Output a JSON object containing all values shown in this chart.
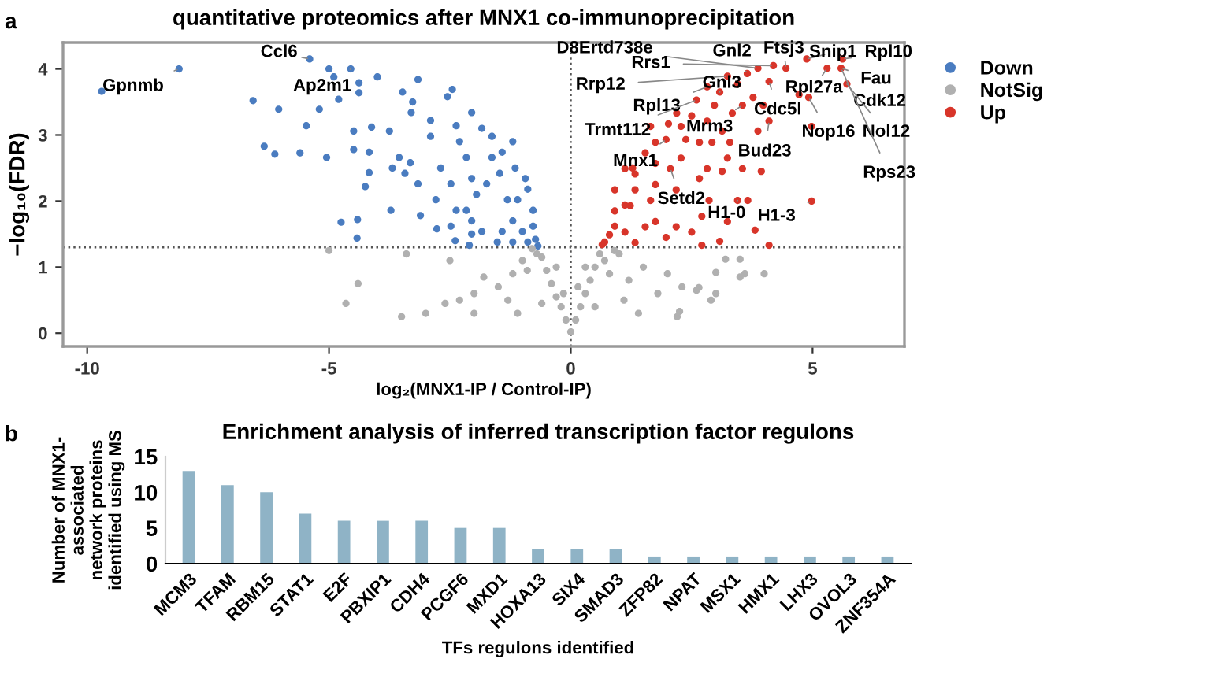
{
  "chart_data": [
    {
      "type": "scatter",
      "title": "quantitative proteomics after MNX1 co-immunoprecipitation",
      "xlabel": "log₂(MNX1-IP / Control-IP)",
      "ylabel": "−log₁₀(FDR)",
      "xlim": [
        -10.5,
        6.9
      ],
      "ylim": [
        -0.2,
        4.4
      ],
      "xticks": [
        -10,
        -5,
        0,
        5
      ],
      "yticks": [
        0,
        1,
        2,
        3,
        4
      ],
      "grid": false,
      "legend": "top right",
      "marker": "circle",
      "ref_lines": [
        {
          "axis": "y",
          "value": 1.3,
          "color": "#555555",
          "line_style": "dotted"
        },
        {
          "axis": "x",
          "value": 0,
          "color": "#555555",
          "line_style": "dotted"
        }
      ],
      "series": [
        {
          "name": "Down",
          "color": "#4a7cc0",
          "x": [
            -9.7,
            -8.1,
            -5.4,
            -5.0,
            -4.55,
            -4.9,
            -4.38,
            -4.0,
            -3.16,
            -6.57,
            -6.04,
            -5.2,
            -4.8,
            -4.38,
            -3.48,
            -2.45,
            -2.55,
            -3.27,
            -6.34,
            -6.12,
            -5.6,
            -5.05,
            -5.47,
            -4.49,
            -4.12,
            -4.49,
            -4.17,
            -3.55,
            -3.75,
            -3.3,
            -2.9,
            -2.9,
            -2.37,
            -2.3,
            -2.05,
            -1.84,
            -1.63,
            -1.42,
            -1.2,
            -1.15,
            -0.94,
            -0.89,
            -0.78,
            -0.78,
            -0.73,
            -1.0,
            -1.31,
            -1.2,
            -1.42,
            -1.2,
            -1.52,
            -1.84,
            -2.05,
            -2.16,
            -1.95,
            -2.37,
            -2.48,
            -2.05,
            -2.39,
            -2.77,
            -2.79,
            -3.11,
            -3.16,
            -3.43,
            -3.69,
            -3.32,
            -2.69,
            -2.48,
            -2.05,
            -1.74,
            -1.47,
            -4.25,
            -3.72,
            -4.75,
            -4.41,
            -4.42,
            -4.17,
            -2.16,
            -1.63,
            -1.1,
            -0.89,
            -0.68,
            -2.1
          ],
          "values": [
            3.66,
            4.0,
            4.15,
            4.0,
            4.0,
            3.88,
            3.79,
            3.88,
            3.84,
            3.52,
            3.39,
            3.39,
            3.54,
            3.64,
            3.65,
            3.69,
            3.58,
            3.5,
            2.83,
            2.71,
            2.73,
            2.66,
            3.14,
            3.06,
            3.12,
            2.78,
            2.74,
            2.66,
            3.06,
            3.34,
            3.22,
            2.98,
            3.14,
            2.9,
            3.34,
            3.1,
            2.98,
            2.74,
            2.9,
            2.5,
            2.34,
            2.18,
            1.86,
            1.62,
            1.42,
            1.54,
            2.02,
            1.7,
            1.54,
            1.38,
            1.38,
            1.54,
            1.7,
            1.86,
            2.1,
            1.86,
            1.62,
            1.5,
            1.4,
            1.58,
            2.02,
            1.78,
            2.26,
            2.42,
            2.5,
            2.58,
            2.5,
            2.26,
            2.34,
            2.26,
            2.42,
            2.22,
            1.86,
            1.68,
            1.72,
            1.44,
            2.43,
            2.66,
            2.66,
            2.02,
            1.38,
            1.32,
            1.33
          ]
        },
        {
          "name": "NotSig",
          "color": "#b0b0b0",
          "x": [
            0,
            0.1,
            -0.1,
            0.2,
            -0.2,
            0.3,
            -0.3,
            0.4,
            -0.4,
            0.5,
            -0.5,
            0.6,
            -0.6,
            0.7,
            -0.7,
            0.8,
            -0.9,
            1.0,
            -1.0,
            1.2,
            -1.2,
            1.5,
            -1.5,
            1.8,
            -1.8,
            2.0,
            -2.0,
            2.3,
            -2.3,
            2.6,
            -2.6,
            3.0,
            -3.0,
            3.5,
            3.5,
            4.0,
            -3.5,
            -4.4,
            -4.65,
            -5.0,
            -3.4,
            -2.5,
            2.9,
            0.3,
            -0.3,
            0.15,
            -0.15,
            1.4,
            -1.3,
            0.5,
            -0.6,
            2.2,
            -2.0,
            0.9,
            -0.8,
            1.1,
            -1.1,
            2.25,
            3.2,
            3.6,
            3.0,
            2.65
          ],
          "values": [
            0.02,
            0.2,
            0.2,
            0.4,
            0.4,
            0.6,
            0.55,
            0.8,
            0.75,
            1.0,
            0.95,
            1.2,
            1.15,
            1.1,
            1.2,
            0.9,
            0.95,
            1.2,
            1.1,
            0.8,
            0.9,
            1.0,
            0.7,
            0.6,
            0.85,
            0.9,
            0.6,
            0.7,
            0.5,
            0.65,
            0.45,
            0.6,
            0.3,
            0.85,
            1.12,
            0.9,
            0.25,
            0.75,
            0.45,
            1.25,
            1.2,
            1.1,
            0.5,
            1.0,
            1.0,
            0.7,
            0.6,
            0.3,
            0.5,
            0.4,
            0.45,
            0.25,
            0.3,
            1.25,
            1.28,
            0.5,
            0.3,
            0.33,
            1.12,
            0.9,
            0.92,
            0.69
          ]
        },
        {
          "name": "Up",
          "color": "#d8352a",
          "x": [
            4.88,
            5.62,
            5.3,
            5.59,
            5.71,
            4.92,
            4.98,
            4.45,
            4.19,
            4.1,
            3.87,
            3.65,
            3.45,
            3.24,
            3.08,
            3.77,
            3.98,
            4.72,
            4.1,
            3.87,
            3.55,
            3.34,
            2.82,
            2.6,
            2.97,
            2.82,
            2.5,
            2.28,
            2.02,
            2.38,
            1.97,
            1.75,
            3.13,
            3.29,
            2.92,
            2.66,
            3.24,
            3.94,
            3.55,
            3.13,
            2.82,
            2.66,
            2.28,
            2.06,
            1.75,
            1.54,
            1.33,
            1.12,
            0.91,
            1.33,
            1.75,
            2.18,
            1.65,
            1.23,
            0.91,
            2.86,
            3.45,
            3.66,
            4.98,
            3.81,
            3.24,
            2.71,
            2.5,
            1.97,
            1.54,
            1.12,
            0.8,
            1.33,
            2.71,
            3.08,
            4.1,
            2.18,
            1.75,
            0.7,
            1.12,
            1.28,
            0.91,
            0.65,
            1.65,
            2.19
          ],
          "values": [
            4.15,
            4.15,
            4.01,
            4.01,
            3.77,
            3.57,
            3.13,
            4.01,
            4.05,
            3.81,
            4.01,
            3.93,
            3.77,
            3.89,
            3.65,
            3.57,
            3.45,
            3.61,
            3.21,
            3.06,
            3.45,
            3.33,
            3.73,
            3.53,
            3.45,
            3.21,
            3.29,
            3.13,
            3.17,
            2.93,
            2.93,
            2.89,
            3.06,
            2.89,
            2.89,
            2.89,
            2.65,
            2.45,
            2.49,
            2.45,
            2.49,
            2.34,
            2.65,
            2.49,
            2.57,
            2.73,
            2.41,
            2.49,
            2.17,
            2.17,
            2.25,
            2.17,
            2.01,
            1.93,
            1.85,
            2.01,
            2.01,
            2.01,
            2.0,
            1.56,
            1.69,
            1.77,
            1.53,
            1.45,
            1.61,
            1.53,
            1.49,
            1.37,
            1.33,
            1.39,
            1.33,
            1.61,
            1.69,
            1.38,
            1.94,
            2.5,
            1.62,
            1.34,
            3.13,
            3.33
          ]
        }
      ],
      "annotations": [
        "a",
        {
          "text": "Gpnmb",
          "x": -8.1,
          "y": 4.0
        },
        {
          "text": "Ccl6",
          "x": -5.4,
          "y": 4.15
        },
        {
          "text": "Ap2m1",
          "x": -4.55,
          "y": 4.0
        },
        {
          "text": "D8Ertd738e",
          "x": 3.87,
          "y": 4.01
        },
        {
          "text": "Rrs1",
          "x": 4.19,
          "y": 4.05
        },
        {
          "text": "Gnl2",
          "x": 3.65,
          "y": 3.93
        },
        {
          "text": "Ftsj3",
          "x": 4.45,
          "y": 4.01
        },
        {
          "text": "Snip1",
          "x": 4.88,
          "y": 4.15
        },
        {
          "text": "Rpl10",
          "x": 5.62,
          "y": 4.15
        },
        {
          "text": "Rrp12",
          "x": 3.24,
          "y": 3.89
        },
        {
          "text": "Gnl3",
          "x": 3.08,
          "y": 3.65
        },
        {
          "text": "Rpl27a",
          "x": 5.3,
          "y": 4.01
        },
        {
          "text": "Fau",
          "x": 5.59,
          "y": 4.01
        },
        {
          "text": "Cdk12",
          "x": 5.71,
          "y": 3.77
        },
        {
          "text": "Cdc5l",
          "x": 4.1,
          "y": 3.81
        },
        {
          "text": "Rpl13",
          "x": 2.82,
          "y": 3.73
        },
        {
          "text": "Trmt112",
          "x": 2.6,
          "y": 3.53
        },
        {
          "text": "Mrm3",
          "x": 3.55,
          "y": 3.45
        },
        {
          "text": "Nop16",
          "x": 4.92,
          "y": 3.57
        },
        {
          "text": "Nol12",
          "x": 5.71,
          "y": 3.77
        },
        {
          "text": "Mnx1",
          "x": 1.97,
          "y": 2.93
        },
        {
          "text": "Bud23",
          "x": 4.1,
          "y": 3.21
        },
        {
          "text": "Rps23",
          "x": 5.59,
          "y": 4.01
        },
        {
          "text": "Setd2",
          "x": 2.06,
          "y": 2.49
        },
        {
          "text": "H1-0",
          "x": 3.45,
          "y": 2.01
        },
        {
          "text": "H1-3",
          "x": 4.98,
          "y": 2.0
        }
      ]
    },
    {
      "type": "bar",
      "title": "Enrichment analysis of inferred transcription factor regulons",
      "xlabel": "TFs regulons identified",
      "ylabel": "Number of MNX1-\nassociated\nnetwork proteins\nidentified using MS",
      "categories": [
        "MCM3",
        "TFAM",
        "RBM15",
        "STAT1",
        "E2F",
        "PBXIP1",
        "CDH4",
        "PCGF6",
        "MXD1",
        "HOXA13",
        "SIX4",
        "SMAD3",
        "ZFP82",
        "NPAT",
        "MSX1",
        "HMX1",
        "LHX3",
        "OVOL3",
        "ZNF354A"
      ],
      "values": [
        13,
        11,
        10,
        7,
        6,
        6,
        6,
        5,
        5,
        2,
        2,
        2,
        1,
        1,
        1,
        1,
        1,
        1,
        1
      ],
      "color": "#8fb3c6",
      "ylim": [
        0,
        15
      ],
      "yticks": [
        0,
        5,
        10,
        15
      ],
      "grid": false,
      "annotations": [
        "b"
      ]
    }
  ]
}
